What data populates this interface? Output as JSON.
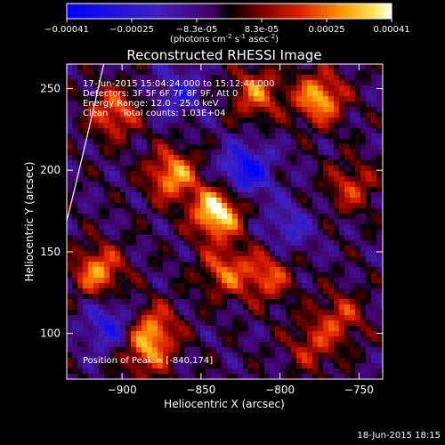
{
  "chart_data": {
    "type": "heatmap",
    "title": "Reconstructed RHESSI Image",
    "xlabel": "Heliocentric X (arcsec)",
    "ylabel": "Heliocentric Y (arcsec)",
    "xlim": [
      -935,
      -735
    ],
    "ylim": [
      72,
      265
    ],
    "xticks": [
      -900,
      -850,
      -800,
      -750
    ],
    "yticks": [
      100,
      150,
      200,
      250
    ],
    "colorbar": {
      "ticks": [
        "-0.00041",
        "-0.00025",
        "-8.3e-05",
        "8.3e-05",
        "0.00025",
        "0.00041"
      ],
      "unit_parts": [
        "(photons cm",
        "-2",
        " s",
        "-1",
        " asec",
        "-2",
        ")"
      ],
      "range": [
        -0.00041,
        0.00041
      ]
    },
    "annotations": [
      "17-Jun-2015 15:04:24.000 to 15:12:44.000",
      "Detectors: 3F 5F 6F 7F 8F 9F, Att 0",
      "Energy Range: 12.0 - 25.0 keV",
      "Clean     Total counts: 1.03E+04"
    ],
    "peak_label": "Position of Peak = [-840,174]",
    "peak": [
      -840,
      174
    ],
    "grid": false,
    "hotspots": [
      {
        "x": -840,
        "y": 174,
        "v": 1.0
      },
      {
        "x": -868,
        "y": 197,
        "v": 0.75
      },
      {
        "x": -775,
        "y": 244,
        "v": 0.8
      },
      {
        "x": -815,
        "y": 247,
        "v": 0.6
      },
      {
        "x": -905,
        "y": 235,
        "v": 0.6
      },
      {
        "x": -915,
        "y": 138,
        "v": 0.7
      },
      {
        "x": -880,
        "y": 103,
        "v": 0.55
      },
      {
        "x": -885,
        "y": 88,
        "v": 0.5
      },
      {
        "x": -835,
        "y": 138,
        "v": 0.55
      },
      {
        "x": -808,
        "y": 135,
        "v": 0.55
      },
      {
        "x": -755,
        "y": 190,
        "v": 0.45
      },
      {
        "x": -762,
        "y": 110,
        "v": 0.45
      },
      {
        "x": -780,
        "y": 92,
        "v": 0.4
      }
    ],
    "coldspots": [
      {
        "x": -822,
        "y": 200,
        "v": -0.7
      },
      {
        "x": -908,
        "y": 105,
        "v": -0.5
      },
      {
        "x": -865,
        "y": 248,
        "v": -0.4
      },
      {
        "x": -795,
        "y": 165,
        "v": -0.35
      }
    ],
    "limb_arc": "white solar limb arc at upper-left"
  },
  "footer": {
    "date": "18-Jun-2015 18:15"
  }
}
